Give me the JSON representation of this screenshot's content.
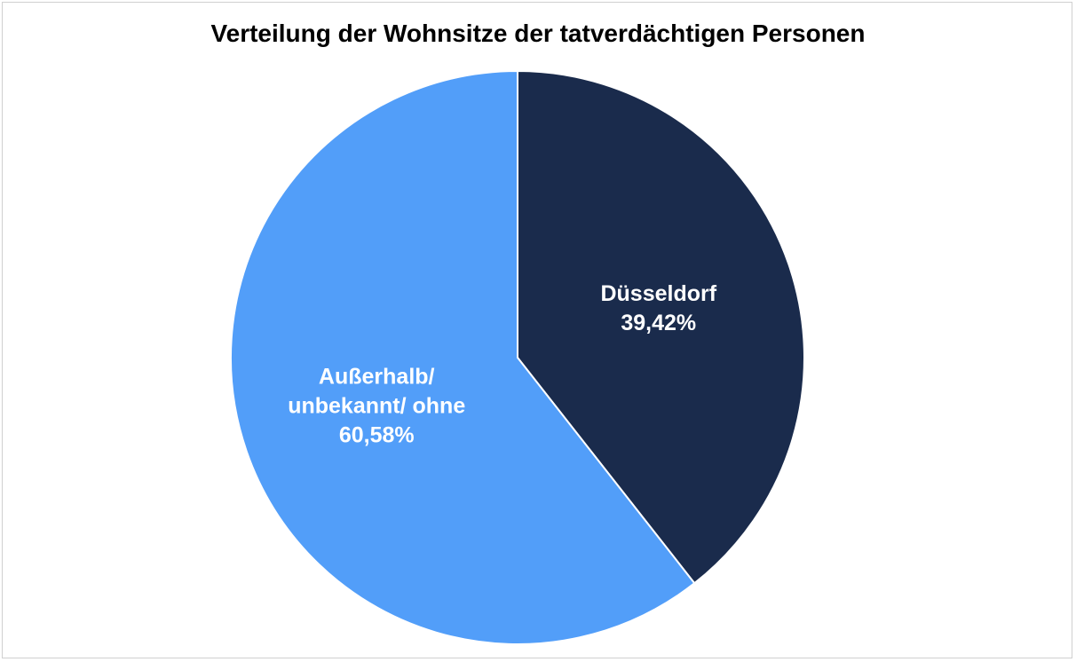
{
  "chart_data": {
    "type": "pie",
    "title": "Verteilung der Wohnsitze der tatverdächtigen Personen",
    "categories": [
      "Düsseldorf",
      "Außerhalb/ unbekannt/ ohne"
    ],
    "values": [
      39.42,
      60.58
    ],
    "value_labels": [
      "39,42%",
      "60,58%"
    ],
    "colors": [
      "#1a2b4c",
      "#529ef9"
    ]
  }
}
